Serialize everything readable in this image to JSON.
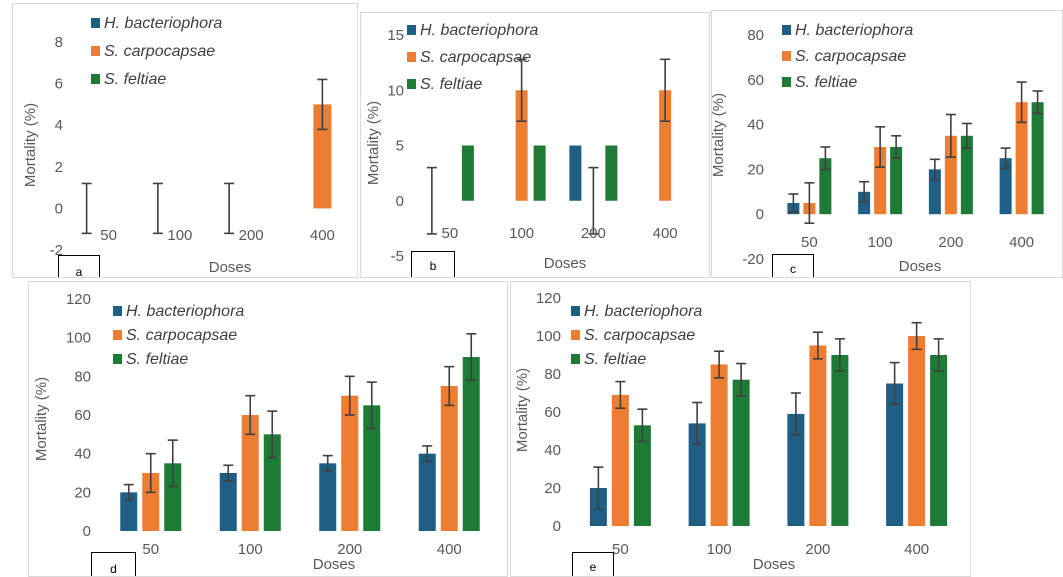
{
  "colors": {
    "series": [
      "#1f5f86",
      "#ed7d31",
      "#1e7b35"
    ],
    "error_bar": "#404040",
    "text": "#595959"
  },
  "chart_data": [
    {
      "panel_label": "a",
      "type": "bar",
      "categories": [
        "50",
        "100",
        "200",
        "400"
      ],
      "series": [
        {
          "name": "H. bacteriophora",
          "values": [
            0,
            0,
            0,
            0
          ],
          "errors": [
            1.2,
            1.2,
            1.2,
            0
          ]
        },
        {
          "name": "S. carpocapsae",
          "values": [
            0,
            0,
            0,
            5
          ],
          "errors": [
            0,
            0,
            0,
            1.2
          ]
        },
        {
          "name": "S. feltiae",
          "values": [
            0,
            0,
            0,
            0
          ],
          "errors": [
            0,
            0,
            0,
            0
          ]
        }
      ],
      "xlabel": "Doses",
      "ylabel": "Mortality (%)",
      "ylim": [
        -2,
        8
      ],
      "yticks": [
        -2,
        0,
        2,
        4,
        6,
        8
      ],
      "legend": "top-left",
      "grid": false
    },
    {
      "panel_label": "b",
      "type": "bar",
      "categories": [
        "50",
        "100",
        "200",
        "400"
      ],
      "series": [
        {
          "name": "H. bacteriophora",
          "values": [
            0,
            0,
            5,
            0
          ],
          "errors": [
            3,
            0,
            0,
            0
          ]
        },
        {
          "name": "S. carpocapsae",
          "values": [
            0,
            10,
            0,
            10
          ],
          "errors": [
            0,
            2.8,
            0,
            2.8
          ]
        },
        {
          "name": "S. feltiae",
          "values": [
            5,
            5,
            5,
            0
          ],
          "errors": [
            0,
            0,
            0,
            0
          ]
        }
      ],
      "extra_error_bars": [
        {
          "category_index": 2,
          "series_index": 0,
          "center": 0,
          "error": 3
        }
      ],
      "xlabel": "Doses",
      "ylabel": "Mortality (%)",
      "ylim": [
        -5,
        15
      ],
      "yticks": [
        -5,
        0,
        5,
        10,
        15
      ],
      "legend": "top-left",
      "grid": false
    },
    {
      "panel_label": "c",
      "type": "bar",
      "categories": [
        "50",
        "100",
        "200",
        "400"
      ],
      "series": [
        {
          "name": "H. bacteriophora",
          "values": [
            5,
            10,
            20,
            25
          ],
          "errors": [
            4,
            4.5,
            4.5,
            4.5
          ]
        },
        {
          "name": "S. carpocapsae",
          "values": [
            5,
            30,
            35,
            50
          ],
          "errors": [
            9,
            9,
            9.5,
            9
          ]
        },
        {
          "name": "S. feltiae",
          "values": [
            25,
            30,
            35,
            50
          ],
          "errors": [
            5,
            5,
            5.5,
            5
          ]
        }
      ],
      "xlabel": "Doses",
      "ylabel": "Mortality (%)",
      "ylim": [
        -20,
        80
      ],
      "yticks": [
        -20,
        0,
        20,
        40,
        60,
        80
      ],
      "legend": "top-left",
      "grid": false
    },
    {
      "panel_label": "d",
      "type": "bar",
      "categories": [
        "50",
        "100",
        "200",
        "400"
      ],
      "series": [
        {
          "name": "H. bacteriophora",
          "values": [
            20,
            30,
            35,
            40
          ],
          "errors": [
            4,
            4,
            4,
            4
          ]
        },
        {
          "name": "S. carpocapsae",
          "values": [
            30,
            60,
            70,
            75
          ],
          "errors": [
            10,
            10,
            10,
            10
          ]
        },
        {
          "name": "S. feltiae",
          "values": [
            35,
            50,
            65,
            90
          ],
          "errors": [
            12,
            12,
            12,
            12
          ]
        }
      ],
      "xlabel": "Doses",
      "ylabel": "Mortality (%)",
      "ylim": [
        0,
        120
      ],
      "yticks": [
        0,
        20,
        40,
        60,
        80,
        100,
        120
      ],
      "legend": "top-left",
      "grid": false
    },
    {
      "panel_label": "e",
      "type": "bar",
      "categories": [
        "50",
        "100",
        "200",
        "400"
      ],
      "series": [
        {
          "name": "H. bacteriophora",
          "values": [
            20,
            54,
            59,
            75
          ],
          "errors": [
            11,
            11,
            11,
            11
          ]
        },
        {
          "name": "S. carpocapsae",
          "values": [
            69,
            85,
            95,
            100
          ],
          "errors": [
            7,
            7,
            7,
            7
          ]
        },
        {
          "name": "S. feltiae",
          "values": [
            53,
            77,
            90,
            90
          ],
          "errors": [
            8.5,
            8.5,
            8.5,
            8.5
          ]
        }
      ],
      "xlabel": "Doses",
      "ylabel": "Mortality (%)",
      "ylim": [
        0,
        120
      ],
      "yticks": [
        0,
        20,
        40,
        60,
        80,
        100,
        120
      ],
      "legend": "top-left",
      "grid": false
    }
  ]
}
